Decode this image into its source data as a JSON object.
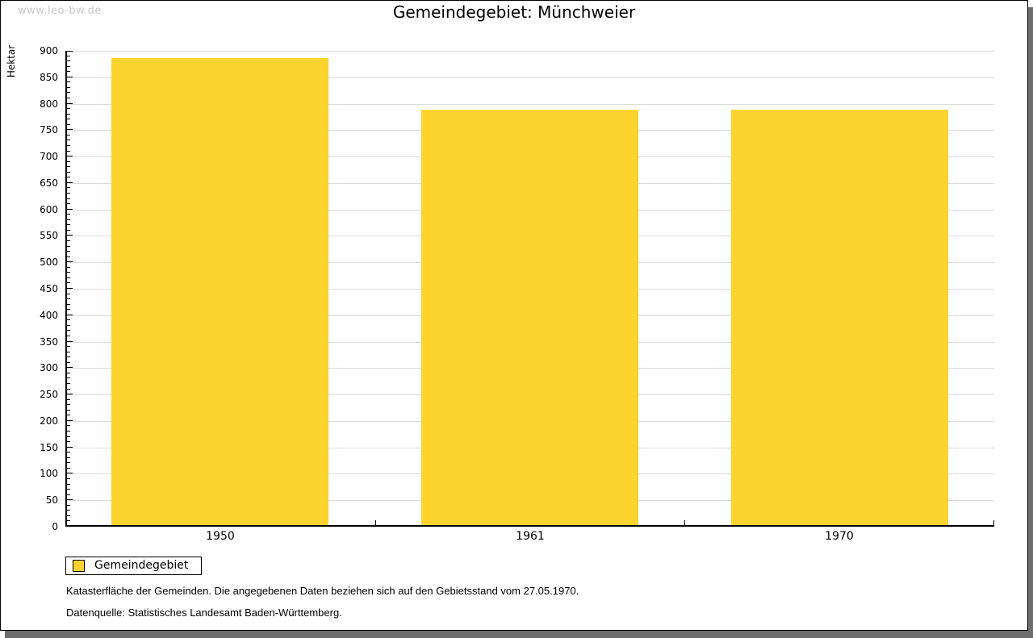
{
  "watermark": "www.leo-bw.de",
  "chart_data": {
    "type": "bar",
    "title": "Gemeindegebiet: Münchweier",
    "categories": [
      "1950",
      "1961",
      "1970"
    ],
    "series": [
      {
        "name": "Gemeindegebiet",
        "values": [
          887,
          789,
          789
        ]
      }
    ],
    "xlabel": "",
    "ylabel": "Hektar",
    "ylim": [
      0,
      900
    ],
    "ytick_step": 50,
    "minor_tick_step": 10,
    "grid": true,
    "legend_position": "bottom-left",
    "bar_color": "#fcd32f"
  },
  "colors": {
    "bar": "#fcd32f",
    "gridline": "#dcdcdc",
    "axis": "#000000",
    "watermark": "#c9c9c9",
    "frame_shadow": "#6e6e6e"
  },
  "footnotes": [
    "Katasterfläche der Gemeinden. Die angegebenen Daten beziehen sich auf den Gebietsstand vom 27.05.1970.",
    "Datenquelle: Statistisches Landesamt Baden-Württemberg."
  ]
}
